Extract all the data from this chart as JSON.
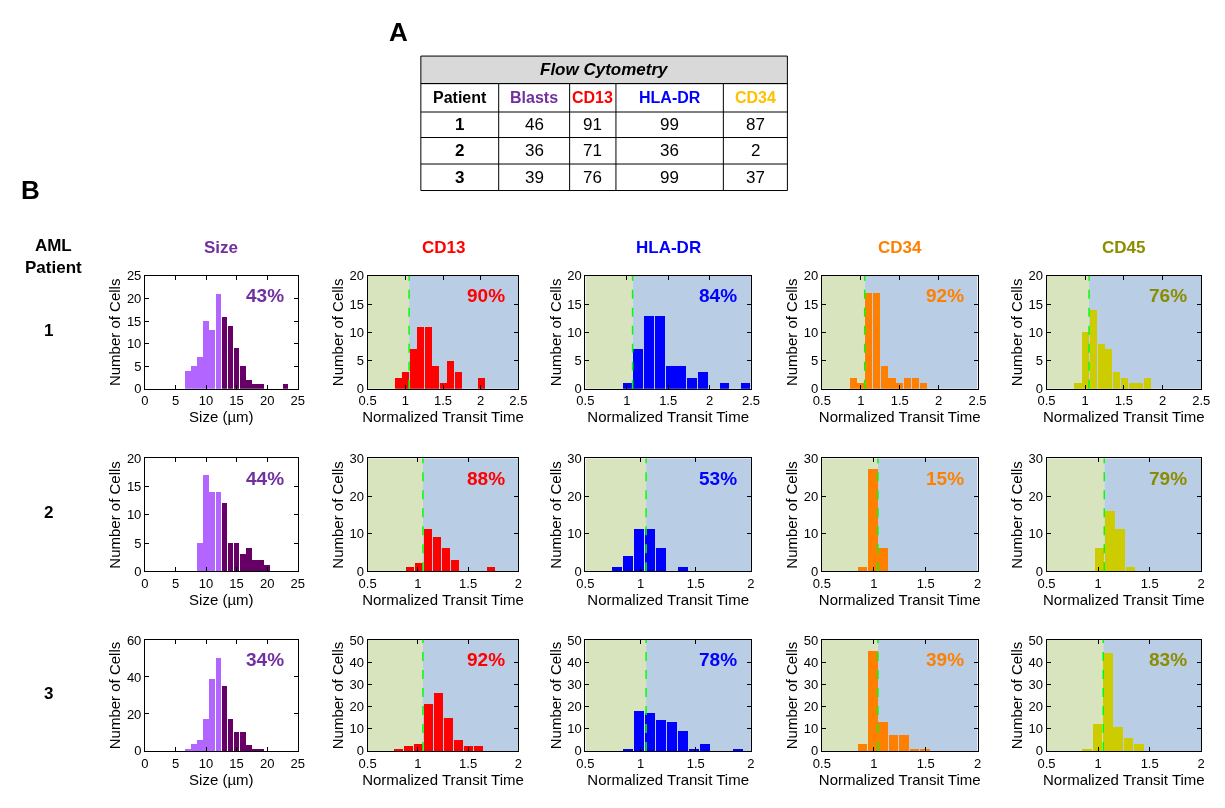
{
  "chart_data": [
    {
      "type": "other",
      "title": "A",
      "subtitle": "Flow Cytometry",
      "categories": [
        "Patient",
        "Blasts",
        "CD13",
        "HLA-DR",
        "CD34"
      ],
      "colors": [
        "#000000",
        "#7030a0",
        "#ff0000",
        "#0000ff",
        "#ffc000"
      ],
      "y_categories": [
        "1",
        "2",
        "3"
      ],
      "annotations": [
        "46",
        "91",
        "99",
        "87",
        "36",
        "71",
        "36",
        "2",
        "39",
        "76",
        "99",
        "37"
      ]
    },
    {
      "type": "histogram",
      "title": "Size",
      "color": "#7030a0",
      "xlabel": "Size (µm)",
      "ylabel": "Number of Cells",
      "bins": [
        6.5,
        7.5,
        8.5,
        9.5,
        10.5,
        11.5,
        12.5,
        13.5,
        14.5,
        15.5,
        16.5,
        17.5,
        18.5,
        19.5,
        20.5,
        21.5,
        22.5,
        23.5
      ],
      "values": [
        4,
        5,
        7,
        15,
        13,
        21,
        16,
        14,
        9,
        5,
        2,
        1,
        1,
        0,
        0,
        0,
        1
      ],
      "colors": [
        "#b266ff",
        "#b266ff",
        "#b266ff",
        "#b266ff",
        "#b266ff",
        "#b266ff",
        "#660066",
        "#660066",
        "#660066",
        "#660066",
        "#660066",
        "#660066",
        "#660066",
        "#660066",
        "#660066",
        "#660066",
        "#660066"
      ],
      "xlim": [
        0,
        25
      ],
      "xticks": [
        0,
        5,
        10,
        15,
        20,
        25
      ],
      "ylim": [
        0,
        25
      ],
      "yticks": [
        0,
        5,
        10,
        15,
        20,
        25
      ],
      "annotations": [
        "43%",
        "1",
        "AML Patient",
        "B"
      ]
    },
    {
      "type": "histogram",
      "title": "CD13",
      "color": "#ff0000",
      "xlabel": "Normalized Transit Time",
      "ylabel": "Number of Cells",
      "bins": [
        0.85,
        0.95,
        1.05,
        1.15,
        1.25,
        1.35,
        1.45,
        1.55,
        1.65,
        1.75,
        1.85,
        1.95,
        2.05
      ],
      "values": [
        2,
        3,
        7,
        11,
        11,
        4,
        1,
        5,
        3,
        0,
        0,
        2
      ],
      "xlim": [
        0.5,
        2.5
      ],
      "xticks": [
        0.5,
        1,
        1.5,
        2,
        2.5
      ],
      "ylim": [
        0,
        20
      ],
      "yticks": [
        0,
        5,
        10,
        15,
        20
      ],
      "bands": [
        {
          "axis": "x",
          "from": 0.5,
          "to": 1.05,
          "color": "#d7e4bd"
        },
        {
          "axis": "x",
          "from": 1.05,
          "to": 2.5,
          "color": "#b9cde5"
        }
      ],
      "ref_lines": [
        {
          "axis": "x",
          "value": 1.05,
          "color": "#00ff00",
          "line_style": "dashed"
        }
      ],
      "annotations": [
        "90%"
      ]
    },
    {
      "type": "histogram",
      "title": "HLA-DR",
      "color": "#0000ff",
      "xlabel": "Normalized Transit Time",
      "ylabel": "Number of Cells",
      "bins": [
        0.95,
        1.08,
        1.21,
        1.34,
        1.47,
        1.6,
        1.73,
        1.86,
        1.99,
        2.12,
        2.25,
        2.38,
        2.5
      ],
      "values": [
        1,
        7,
        13,
        13,
        4,
        4,
        2,
        3,
        0,
        1,
        0,
        1
      ],
      "xlim": [
        0.5,
        2.5
      ],
      "xticks": [
        0.5,
        1,
        1.5,
        2,
        2.5
      ],
      "ylim": [
        0,
        20
      ],
      "yticks": [
        0,
        5,
        10,
        15,
        20
      ],
      "bands": [
        {
          "axis": "x",
          "from": 0.5,
          "to": 1.07,
          "color": "#d7e4bd"
        },
        {
          "axis": "x",
          "from": 1.07,
          "to": 2.5,
          "color": "#b9cde5"
        }
      ],
      "ref_lines": [
        {
          "axis": "x",
          "value": 1.07,
          "color": "#00ff00",
          "line_style": "dashed"
        }
      ],
      "annotations": [
        "84%"
      ]
    },
    {
      "type": "histogram",
      "title": "CD34",
      "color": "#ff8000",
      "xlabel": "Normalized Transit Time",
      "ylabel": "Number of Cells",
      "bins": [
        0.85,
        0.95,
        1.05,
        1.15,
        1.25,
        1.35,
        1.45,
        1.55,
        1.65,
        1.75,
        1.85
      ],
      "values": [
        2,
        1,
        17,
        17,
        4,
        2,
        1,
        2,
        2,
        1
      ],
      "xlim": [
        0.5,
        2.5
      ],
      "xticks": [
        0.5,
        1,
        1.5,
        2,
        2.5
      ],
      "ylim": [
        0,
        20
      ],
      "yticks": [
        0,
        5,
        10,
        15,
        20
      ],
      "bands": [
        {
          "axis": "x",
          "from": 0.5,
          "to": 1.05,
          "color": "#d7e4bd"
        },
        {
          "axis": "x",
          "from": 1.05,
          "to": 2.5,
          "color": "#b9cde5"
        }
      ],
      "ref_lines": [
        {
          "axis": "x",
          "value": 1.05,
          "color": "#00ff00",
          "line_style": "dashed"
        }
      ],
      "annotations": [
        "92%"
      ]
    },
    {
      "type": "histogram",
      "title": "CD45",
      "color": "#8c8c00",
      "colors": [
        "#cccc00",
        "#cccc00",
        "#cccc00",
        "#cccc00",
        "#cccc00",
        "#cccc00",
        "#cccc00",
        "#cccc00",
        "#cccc00",
        "#cccc00"
      ],
      "xlabel": "Normalized Transit Time",
      "ylabel": "Number of Cells",
      "bins": [
        0.85,
        0.95,
        1.05,
        1.15,
        1.25,
        1.35,
        1.45,
        1.55,
        1.65,
        1.75,
        1.85
      ],
      "values": [
        1,
        10,
        14,
        8,
        7,
        3,
        2,
        1,
        1,
        2
      ],
      "xlim": [
        0.5,
        2.5
      ],
      "xticks": [
        0.5,
        1,
        1.5,
        2,
        2.5
      ],
      "ylim": [
        0,
        20
      ],
      "yticks": [
        0,
        5,
        10,
        15,
        20
      ],
      "bands": [
        {
          "axis": "x",
          "from": 0.5,
          "to": 1.05,
          "color": "#d7e4bd"
        },
        {
          "axis": "x",
          "from": 1.05,
          "to": 2.5,
          "color": "#b9cde5"
        }
      ],
      "ref_lines": [
        {
          "axis": "x",
          "value": 1.05,
          "color": "#00ff00",
          "line_style": "dashed"
        }
      ],
      "annotations": [
        "76%"
      ]
    },
    {
      "type": "histogram",
      "color": "#7030a0",
      "xlabel": "Size (µm)",
      "ylabel": "Number of Cells",
      "bins": [
        8.5,
        9.5,
        10.5,
        11.5,
        12.5,
        13.5,
        14.5,
        15.5,
        16.5,
        17.5,
        18.5,
        19.5,
        20.5
      ],
      "values": [
        5,
        17,
        14,
        14,
        12,
        5,
        5,
        3,
        4,
        2,
        2,
        1
      ],
      "colors": [
        "#b266ff",
        "#b266ff",
        "#b266ff",
        "#b266ff",
        "#660066",
        "#660066",
        "#660066",
        "#660066",
        "#660066",
        "#660066",
        "#660066",
        "#660066"
      ],
      "xlim": [
        0,
        25
      ],
      "xticks": [
        0,
        5,
        10,
        15,
        20,
        25
      ],
      "ylim": [
        0,
        20
      ],
      "yticks": [
        0,
        5,
        10,
        15,
        20
      ],
      "annotations": [
        "44%",
        "2"
      ]
    },
    {
      "type": "histogram",
      "color": "#ff0000",
      "xlabel": "Normalized Transit Time",
      "ylabel": "Number of Cells",
      "bins": [
        0.87,
        0.96,
        1.05,
        1.14,
        1.23,
        1.32,
        1.41,
        1.5,
        1.59,
        1.68,
        1.77
      ],
      "values": [
        1,
        2,
        11,
        9,
        6,
        3,
        0,
        0,
        0,
        1
      ],
      "xlim": [
        0.5,
        2
      ],
      "xticks": [
        0.5,
        1,
        1.5,
        2
      ],
      "ylim": [
        0,
        30
      ],
      "yticks": [
        0,
        10,
        20,
        30
      ],
      "bands": [
        {
          "axis": "x",
          "from": 0.5,
          "to": 1.05,
          "color": "#d7e4bd"
        },
        {
          "axis": "x",
          "from": 1.05,
          "to": 2,
          "color": "#b9cde5"
        }
      ],
      "ref_lines": [
        {
          "axis": "x",
          "value": 1.05,
          "color": "#00ff00",
          "line_style": "dashed"
        }
      ],
      "annotations": [
        "88%"
      ]
    },
    {
      "type": "histogram",
      "color": "#0000ff",
      "xlabel": "Normalized Transit Time",
      "ylabel": "Number of Cells",
      "bins": [
        0.74,
        0.84,
        0.94,
        1.04,
        1.14,
        1.24,
        1.34,
        1.44
      ],
      "values": [
        1,
        4,
        11,
        11,
        6,
        0,
        1
      ],
      "xlim": [
        0.5,
        2
      ],
      "xticks": [
        0.5,
        1,
        1.5,
        2
      ],
      "ylim": [
        0,
        30
      ],
      "yticks": [
        0,
        10,
        20,
        30
      ],
      "bands": [
        {
          "axis": "x",
          "from": 0.5,
          "to": 1.05,
          "color": "#d7e4bd"
        },
        {
          "axis": "x",
          "from": 1.05,
          "to": 2,
          "color": "#b9cde5"
        }
      ],
      "ref_lines": [
        {
          "axis": "x",
          "value": 1.05,
          "color": "#00ff00",
          "line_style": "dashed"
        }
      ],
      "annotations": [
        "53%"
      ]
    },
    {
      "type": "histogram",
      "color": "#ff8000",
      "xlabel": "Normalized Transit Time",
      "ylabel": "Number of Cells",
      "bins": [
        0.84,
        0.94,
        1.04,
        1.14
      ],
      "values": [
        1,
        27,
        6
      ],
      "xlim": [
        0.5,
        2
      ],
      "xticks": [
        0.5,
        1,
        1.5,
        2
      ],
      "ylim": [
        0,
        30
      ],
      "yticks": [
        0,
        10,
        20,
        30
      ],
      "bands": [
        {
          "axis": "x",
          "from": 0.5,
          "to": 1.04,
          "color": "#d7e4bd"
        },
        {
          "axis": "x",
          "from": 1.04,
          "to": 2,
          "color": "#b9cde5"
        }
      ],
      "ref_lines": [
        {
          "axis": "x",
          "value": 1.04,
          "color": "#00ff00",
          "line_style": "dashed"
        }
      ],
      "annotations": [
        "15%"
      ]
    },
    {
      "type": "histogram",
      "color": "#8c8c00",
      "colors": [
        "#cccc00",
        "#cccc00",
        "#cccc00",
        "#cccc00"
      ],
      "xlabel": "Normalized Transit Time",
      "ylabel": "Number of Cells",
      "bins": [
        0.96,
        1.06,
        1.16,
        1.26,
        1.36
      ],
      "values": [
        6,
        16,
        11,
        1
      ],
      "xlim": [
        0.5,
        2
      ],
      "xticks": [
        0.5,
        1,
        1.5,
        2
      ],
      "ylim": [
        0,
        30
      ],
      "yticks": [
        0,
        10,
        20,
        30
      ],
      "bands": [
        {
          "axis": "x",
          "from": 0.5,
          "to": 1.06,
          "color": "#d7e4bd"
        },
        {
          "axis": "x",
          "from": 1.06,
          "to": 2,
          "color": "#b9cde5"
        }
      ],
      "ref_lines": [
        {
          "axis": "x",
          "value": 1.06,
          "color": "#00ff00",
          "line_style": "dashed"
        }
      ],
      "annotations": [
        "79%"
      ]
    },
    {
      "type": "histogram",
      "color": "#7030a0",
      "xlabel": "Size (µm)",
      "ylabel": "Number of Cells",
      "bins": [
        6.5,
        7.5,
        8.5,
        9.5,
        10.5,
        11.5,
        12.5,
        13.5,
        14.5,
        15.5,
        16.5,
        17.5,
        18.5,
        19.5
      ],
      "values": [
        1,
        4,
        6,
        17,
        39,
        50,
        35,
        17,
        10,
        10,
        3,
        1,
        1
      ],
      "colors": [
        "#b266ff",
        "#b266ff",
        "#b266ff",
        "#b266ff",
        "#b266ff",
        "#b266ff",
        "#660066",
        "#660066",
        "#660066",
        "#660066",
        "#660066",
        "#660066",
        "#660066"
      ],
      "xlim": [
        0,
        25
      ],
      "xticks": [
        0,
        5,
        10,
        15,
        20,
        25
      ],
      "ylim": [
        0,
        60
      ],
      "yticks": [
        0,
        20,
        40,
        60
      ],
      "annotations": [
        "34%",
        "3"
      ]
    },
    {
      "type": "histogram",
      "color": "#ff0000",
      "xlabel": "Normalized Transit Time",
      "ylabel": "Number of Cells",
      "bins": [
        0.75,
        0.85,
        0.95,
        1.05,
        1.15,
        1.25,
        1.35,
        1.45,
        1.55,
        1.65
      ],
      "values": [
        1,
        2,
        3,
        21,
        26,
        15,
        5,
        2,
        2
      ],
      "xlim": [
        0.5,
        2
      ],
      "xticks": [
        0.5,
        1,
        1.5,
        2
      ],
      "ylim": [
        0,
        50
      ],
      "yticks": [
        0,
        10,
        20,
        30,
        40,
        50
      ],
      "bands": [
        {
          "axis": "x",
          "from": 0.5,
          "to": 1.05,
          "color": "#d7e4bd"
        },
        {
          "axis": "x",
          "from": 1.05,
          "to": 2,
          "color": "#b9cde5"
        }
      ],
      "ref_lines": [
        {
          "axis": "x",
          "value": 1.05,
          "color": "#00ff00",
          "line_style": "dashed"
        }
      ],
      "annotations": [
        "92%"
      ]
    },
    {
      "type": "histogram",
      "color": "#0000ff",
      "xlabel": "Normalized Transit Time",
      "ylabel": "Number of Cells",
      "bins": [
        0.84,
        0.94,
        1.04,
        1.14,
        1.24,
        1.34,
        1.44,
        1.54,
        1.64,
        1.74,
        1.84,
        1.94
      ],
      "values": [
        1,
        18,
        17,
        14,
        13,
        9,
        1,
        3,
        0,
        0,
        1
      ],
      "xlim": [
        0.5,
        2
      ],
      "xticks": [
        0.5,
        1,
        1.5,
        2
      ],
      "ylim": [
        0,
        50
      ],
      "yticks": [
        0,
        10,
        20,
        30,
        40,
        50
      ],
      "bands": [
        {
          "axis": "x",
          "from": 0.5,
          "to": 1.05,
          "color": "#d7e4bd"
        },
        {
          "axis": "x",
          "from": 1.05,
          "to": 2,
          "color": "#b9cde5"
        }
      ],
      "ref_lines": [
        {
          "axis": "x",
          "value": 1.05,
          "color": "#00ff00",
          "line_style": "dashed"
        }
      ],
      "annotations": [
        "78%"
      ]
    },
    {
      "type": "histogram",
      "color": "#ff8000",
      "xlabel": "Normalized Transit Time",
      "ylabel": "Number of Cells",
      "bins": [
        0.84,
        0.94,
        1.04,
        1.14,
        1.24,
        1.34,
        1.44,
        1.54
      ],
      "values": [
        3,
        45,
        13,
        7,
        7,
        1,
        1
      ],
      "xlim": [
        0.5,
        2
      ],
      "xticks": [
        0.5,
        1,
        1.5,
        2
      ],
      "ylim": [
        0,
        50
      ],
      "yticks": [
        0,
        10,
        20,
        30,
        40,
        50
      ],
      "bands": [
        {
          "axis": "x",
          "from": 0.5,
          "to": 1.04,
          "color": "#d7e4bd"
        },
        {
          "axis": "x",
          "from": 1.04,
          "to": 2,
          "color": "#b9cde5"
        }
      ],
      "ref_lines": [
        {
          "axis": "x",
          "value": 1.04,
          "color": "#00ff00",
          "line_style": "dashed"
        }
      ],
      "annotations": [
        "39%"
      ]
    },
    {
      "type": "histogram",
      "color": "#8c8c00",
      "colors": [
        "#cccc00",
        "#cccc00",
        "#cccc00",
        "#cccc00",
        "#cccc00",
        "#cccc00"
      ],
      "xlabel": "Normalized Transit Time",
      "ylabel": "Number of Cells",
      "bins": [
        0.84,
        0.94,
        1.04,
        1.14,
        1.24,
        1.34,
        1.44
      ],
      "values": [
        1,
        12,
        44,
        11,
        6,
        3
      ],
      "xlim": [
        0.5,
        2
      ],
      "xticks": [
        0.5,
        1,
        1.5,
        2
      ],
      "ylim": [
        0,
        50
      ],
      "yticks": [
        0,
        10,
        20,
        30,
        40,
        50
      ],
      "bands": [
        {
          "axis": "x",
          "from": 0.5,
          "to": 1.05,
          "color": "#d7e4bd"
        },
        {
          "axis": "x",
          "from": 1.05,
          "to": 2,
          "color": "#b9cde5"
        }
      ],
      "ref_lines": [
        {
          "axis": "x",
          "value": 1.05,
          "color": "#00ff00",
          "line_style": "dashed"
        }
      ],
      "annotations": [
        "83%"
      ]
    }
  ]
}
